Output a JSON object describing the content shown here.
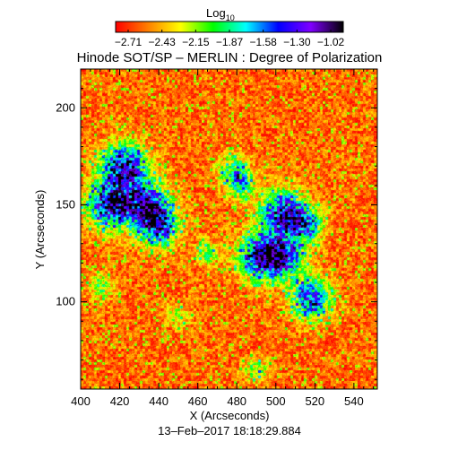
{
  "chart_data": {
    "type": "heatmap",
    "title": "Hinode SOT/SP – MERLIN : Degree of Polarization",
    "colorbar": {
      "label_main": "Log",
      "label_sub": "10",
      "ticks": [
        "−2.71",
        "−2.43",
        "−2.15",
        "−1.87",
        "−1.58",
        "−1.30",
        "−1.02"
      ],
      "range": [
        -2.71,
        -1.02
      ],
      "colormap": "rainbow",
      "colors": [
        "#ff0000",
        "#ff8000",
        "#ffff00",
        "#00ff00",
        "#00ffff",
        "#0000ff",
        "#8000ff",
        "#000000"
      ]
    },
    "xlabel": "X (Arcseconds)",
    "ylabel": "Y (Arcseconds)",
    "xlim": [
      400,
      552
    ],
    "ylim": [
      55,
      220
    ],
    "xticks": [
      400,
      420,
      440,
      460,
      480,
      500,
      520,
      540
    ],
    "yticks": [
      100,
      150,
      200
    ],
    "background_level": -2.5,
    "active_regions": [
      {
        "x": 422,
        "y": 170,
        "strength": 1.0
      },
      {
        "x": 415,
        "y": 150,
        "strength": 1.0
      },
      {
        "x": 434,
        "y": 150,
        "strength": 0.95
      },
      {
        "x": 440,
        "y": 139,
        "strength": 0.8
      },
      {
        "x": 478,
        "y": 168,
        "strength": 0.55
      },
      {
        "x": 482,
        "y": 160,
        "strength": 0.5
      },
      {
        "x": 503,
        "y": 146,
        "strength": 0.95
      },
      {
        "x": 515,
        "y": 140,
        "strength": 0.7
      },
      {
        "x": 492,
        "y": 124,
        "strength": 0.95
      },
      {
        "x": 503,
        "y": 123,
        "strength": 0.85
      },
      {
        "x": 518,
        "y": 102,
        "strength": 0.85
      },
      {
        "x": 465,
        "y": 125,
        "strength": 0.4
      },
      {
        "x": 410,
        "y": 108,
        "strength": 0.4
      },
      {
        "x": 450,
        "y": 93,
        "strength": 0.35
      },
      {
        "x": 490,
        "y": 65,
        "strength": 0.4
      }
    ]
  },
  "footer": {
    "timestamp": "13–Feb–2017 18:18:29.884"
  }
}
